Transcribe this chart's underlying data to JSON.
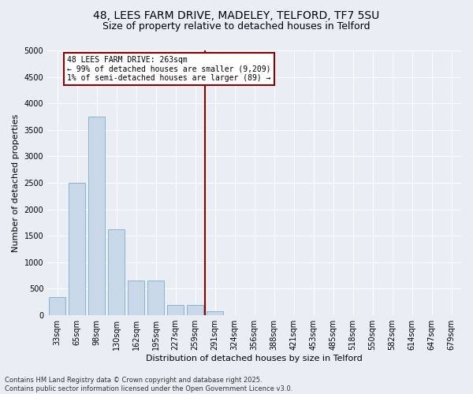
{
  "title_line1": "48, LEES FARM DRIVE, MADELEY, TELFORD, TF7 5SU",
  "title_line2": "Size of property relative to detached houses in Telford",
  "xlabel": "Distribution of detached houses by size in Telford",
  "ylabel": "Number of detached properties",
  "categories": [
    "33sqm",
    "65sqm",
    "98sqm",
    "130sqm",
    "162sqm",
    "195sqm",
    "227sqm",
    "259sqm",
    "291sqm",
    "324sqm",
    "356sqm",
    "388sqm",
    "421sqm",
    "453sqm",
    "485sqm",
    "518sqm",
    "550sqm",
    "582sqm",
    "614sqm",
    "647sqm",
    "679sqm"
  ],
  "values": [
    350,
    2500,
    3750,
    1620,
    650,
    650,
    200,
    200,
    75,
    0,
    0,
    0,
    0,
    0,
    0,
    0,
    0,
    0,
    0,
    0,
    0
  ],
  "bar_color": "#c8d8e8",
  "bar_edge_color": "#8ab4cc",
  "highlight_color": "#8b0000",
  "annotation_text": "48 LEES FARM DRIVE: 263sqm\n← 99% of detached houses are smaller (9,209)\n1% of semi-detached houses are larger (89) →",
  "annotation_box_color": "#8b0000",
  "annotation_bg": "#ffffff",
  "ylim": [
    0,
    5000
  ],
  "yticks": [
    0,
    500,
    1000,
    1500,
    2000,
    2500,
    3000,
    3500,
    4000,
    4500,
    5000
  ],
  "background_color": "#e8eef4",
  "footer_line1": "Contains HM Land Registry data © Crown copyright and database right 2025.",
  "footer_line2": "Contains public sector information licensed under the Open Government Licence v3.0.",
  "title_fontsize": 10,
  "subtitle_fontsize": 9,
  "axis_label_fontsize": 8,
  "tick_fontsize": 7,
  "footer_fontsize": 6,
  "annotation_fontsize": 7
}
